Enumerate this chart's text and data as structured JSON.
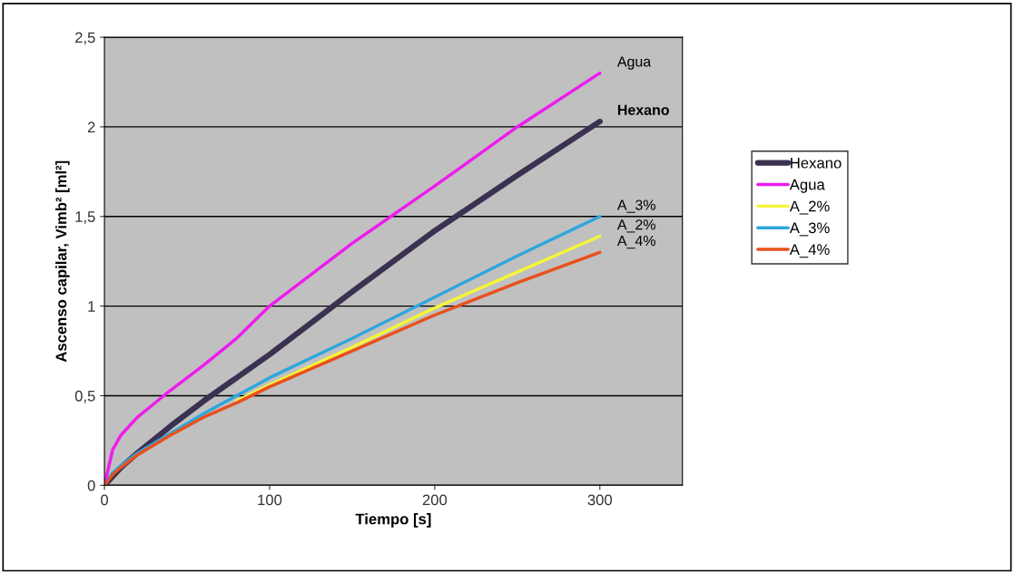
{
  "chart_data": {
    "type": "line",
    "xlabel": "Tiempo [s]",
    "ylabel": "Ascenso capilar, Vimb² [ml²]",
    "x": [
      0,
      5,
      10,
      20,
      40,
      60,
      80,
      100,
      150,
      200,
      250,
      300
    ],
    "series": [
      {
        "name": "Hexano",
        "color": "#3b3150",
        "values": [
          0,
          0.05,
          0.1,
          0.18,
          0.33,
          0.47,
          0.6,
          0.73,
          1.08,
          1.42,
          1.73,
          2.03
        ]
      },
      {
        "name": "Agua",
        "color": "#ee1cee",
        "values": [
          0,
          0.2,
          0.28,
          0.38,
          0.53,
          0.67,
          0.82,
          1.0,
          1.35,
          1.67,
          2.0,
          2.3
        ]
      },
      {
        "name": "A_2%",
        "color": "#f5f53a",
        "values": [
          null,
          null,
          null,
          null,
          null,
          null,
          0.47,
          0.56,
          0.77,
          0.99,
          1.19,
          1.39
        ]
      },
      {
        "name": "A_3%",
        "color": "#2ea6dc",
        "values": [
          0,
          0.07,
          0.11,
          0.18,
          0.29,
          0.4,
          0.5,
          0.6,
          0.82,
          1.05,
          1.28,
          1.5
        ]
      },
      {
        "name": "A_4%",
        "color": "#e8501e",
        "values": [
          0,
          0.06,
          0.1,
          0.17,
          0.28,
          0.38,
          0.46,
          0.55,
          0.75,
          0.95,
          1.13,
          1.3
        ]
      }
    ],
    "xlim": [
      0,
      350
    ],
    "xticks": [
      0,
      100,
      200,
      300
    ],
    "ylim": [
      0,
      2.5
    ],
    "yticks": [
      0,
      {
        "value": 0.5,
        "label": "0,5"
      },
      1,
      {
        "value": 1.5,
        "label": "1,5"
      },
      2,
      {
        "value": 2.5,
        "label": "2,5"
      }
    ],
    "grid": "y",
    "legend": "right",
    "marker": "none",
    "line_style": "solid"
  }
}
